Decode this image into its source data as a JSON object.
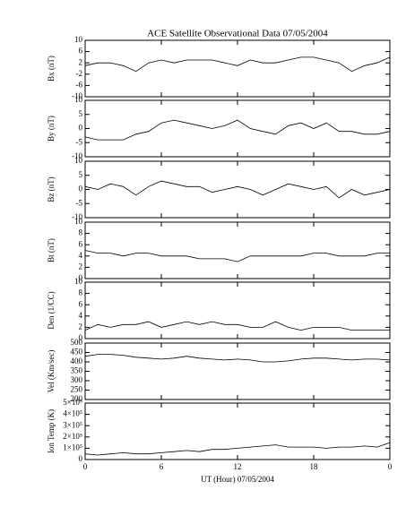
{
  "chart_data": [
    {
      "type": "line",
      "title": "ACE Satellite Observational Data   07/05/2004",
      "ylabel": "Bx (nT)",
      "x": [
        0,
        1,
        2,
        3,
        4,
        5,
        6,
        7,
        8,
        9,
        10,
        11,
        12,
        13,
        14,
        15,
        16,
        17,
        18,
        19,
        20,
        21,
        22,
        23,
        24
      ],
      "values": [
        1,
        2,
        2,
        1,
        -1,
        2,
        3,
        2,
        3,
        3,
        3,
        2,
        1,
        3,
        2,
        2,
        3,
        4,
        4,
        3,
        2,
        -1,
        1,
        2,
        4
      ],
      "ylim": [
        -10,
        10
      ],
      "yticks": [
        -10,
        -6,
        -2,
        2,
        6,
        10
      ],
      "color": "#000000"
    },
    {
      "type": "line",
      "ylabel": "By (nT)",
      "x": [
        0,
        1,
        2,
        3,
        4,
        5,
        6,
        7,
        8,
        9,
        10,
        11,
        12,
        13,
        14,
        15,
        16,
        17,
        18,
        19,
        20,
        21,
        22,
        23,
        24
      ],
      "values": [
        -3,
        -4,
        -4,
        -4,
        -2,
        -1,
        2,
        3,
        2,
        1,
        0,
        1,
        3,
        0,
        -1,
        -2,
        1,
        2,
        0,
        2,
        -1,
        -1,
        -2,
        -2,
        -1
      ],
      "ylim": [
        -10,
        10
      ],
      "yticks": [
        -10,
        -5,
        0,
        5,
        10
      ],
      "color": "#000000"
    },
    {
      "type": "line",
      "ylabel": "Bz (nT)",
      "x": [
        0,
        1,
        2,
        3,
        4,
        5,
        6,
        7,
        8,
        9,
        10,
        11,
        12,
        13,
        14,
        15,
        16,
        17,
        18,
        19,
        20,
        21,
        22,
        23,
        24
      ],
      "values": [
        1,
        0,
        2,
        1,
        -2,
        1,
        3,
        2,
        1,
        1,
        -1,
        0,
        1,
        0,
        -2,
        0,
        2,
        1,
        0,
        1,
        -3,
        0,
        -2,
        -1,
        0
      ],
      "ylim": [
        -10,
        10
      ],
      "yticks": [
        -10,
        -5,
        0,
        5,
        10
      ],
      "color": "#000000"
    },
    {
      "type": "line",
      "ylabel": "Bt (nT)",
      "x": [
        0,
        1,
        2,
        3,
        4,
        5,
        6,
        7,
        8,
        9,
        10,
        11,
        12,
        13,
        14,
        15,
        16,
        17,
        18,
        19,
        20,
        21,
        22,
        23,
        24
      ],
      "values": [
        5,
        4.5,
        4.5,
        4,
        4.5,
        4.5,
        4,
        4,
        4,
        3.5,
        3.5,
        3.5,
        3,
        4,
        4,
        4,
        4,
        4,
        4.5,
        4.5,
        4,
        4,
        4,
        4.5,
        4.5
      ],
      "ylim": [
        0,
        10
      ],
      "yticks": [
        0,
        2,
        4,
        6,
        8,
        10
      ],
      "color": "#000000"
    },
    {
      "type": "line",
      "ylabel": "Den (1/CC)",
      "x": [
        0,
        1,
        2,
        3,
        4,
        5,
        6,
        7,
        8,
        9,
        10,
        11,
        12,
        13,
        14,
        15,
        16,
        17,
        18,
        19,
        20,
        21,
        22,
        23,
        24
      ],
      "values": [
        1.5,
        2.5,
        2,
        2.5,
        2.5,
        3,
        2,
        2.5,
        3,
        2.5,
        3,
        2.5,
        2.5,
        2,
        2,
        3,
        2,
        1.5,
        2,
        2,
        2,
        1.5,
        1.5,
        1.5,
        1.5
      ],
      "ylim": [
        0,
        10
      ],
      "yticks": [
        0,
        2,
        4,
        6,
        8,
        10
      ],
      "color": "#000000"
    },
    {
      "type": "line",
      "ylabel": "Vel (Km/sec)",
      "x": [
        0,
        1,
        2,
        3,
        4,
        5,
        6,
        7,
        8,
        9,
        10,
        11,
        12,
        13,
        14,
        15,
        16,
        17,
        18,
        19,
        20,
        21,
        22,
        23,
        24
      ],
      "values": [
        430,
        440,
        440,
        435,
        425,
        420,
        415,
        420,
        430,
        420,
        415,
        410,
        415,
        410,
        400,
        400,
        405,
        415,
        420,
        420,
        415,
        410,
        415,
        415,
        410
      ],
      "ylim": [
        200,
        500
      ],
      "yticks": [
        200,
        250,
        300,
        350,
        400,
        450,
        500
      ],
      "color": "#000000"
    },
    {
      "type": "line",
      "ylabel": "Ion Temp (K)",
      "xlabel": "UT (Hour)  07/05/2004",
      "x": [
        0,
        1,
        2,
        3,
        4,
        5,
        6,
        7,
        8,
        9,
        10,
        11,
        12,
        13,
        14,
        15,
        16,
        17,
        18,
        19,
        20,
        21,
        22,
        23,
        24
      ],
      "values": [
        50000,
        40000,
        50000,
        60000,
        50000,
        50000,
        60000,
        70000,
        80000,
        70000,
        90000,
        90000,
        100000,
        110000,
        120000,
        130000,
        110000,
        110000,
        110000,
        100000,
        110000,
        110000,
        120000,
        110000,
        150000
      ],
      "ylim": [
        0,
        500000
      ],
      "yticks": [
        0,
        {
          "value": 100000,
          "label": "1×10⁵"
        },
        {
          "value": 200000,
          "label": "2×10⁵"
        },
        {
          "value": 300000,
          "label": "3×10⁵"
        },
        {
          "value": 400000,
          "label": "4×10⁵"
        },
        {
          "value": 500000,
          "label": "5×10⁵"
        }
      ],
      "xlim": [
        0,
        24
      ],
      "xticks": [
        0,
        6,
        12,
        18,
        {
          "value": 24,
          "label": "0"
        }
      ],
      "color": "#000000"
    }
  ]
}
